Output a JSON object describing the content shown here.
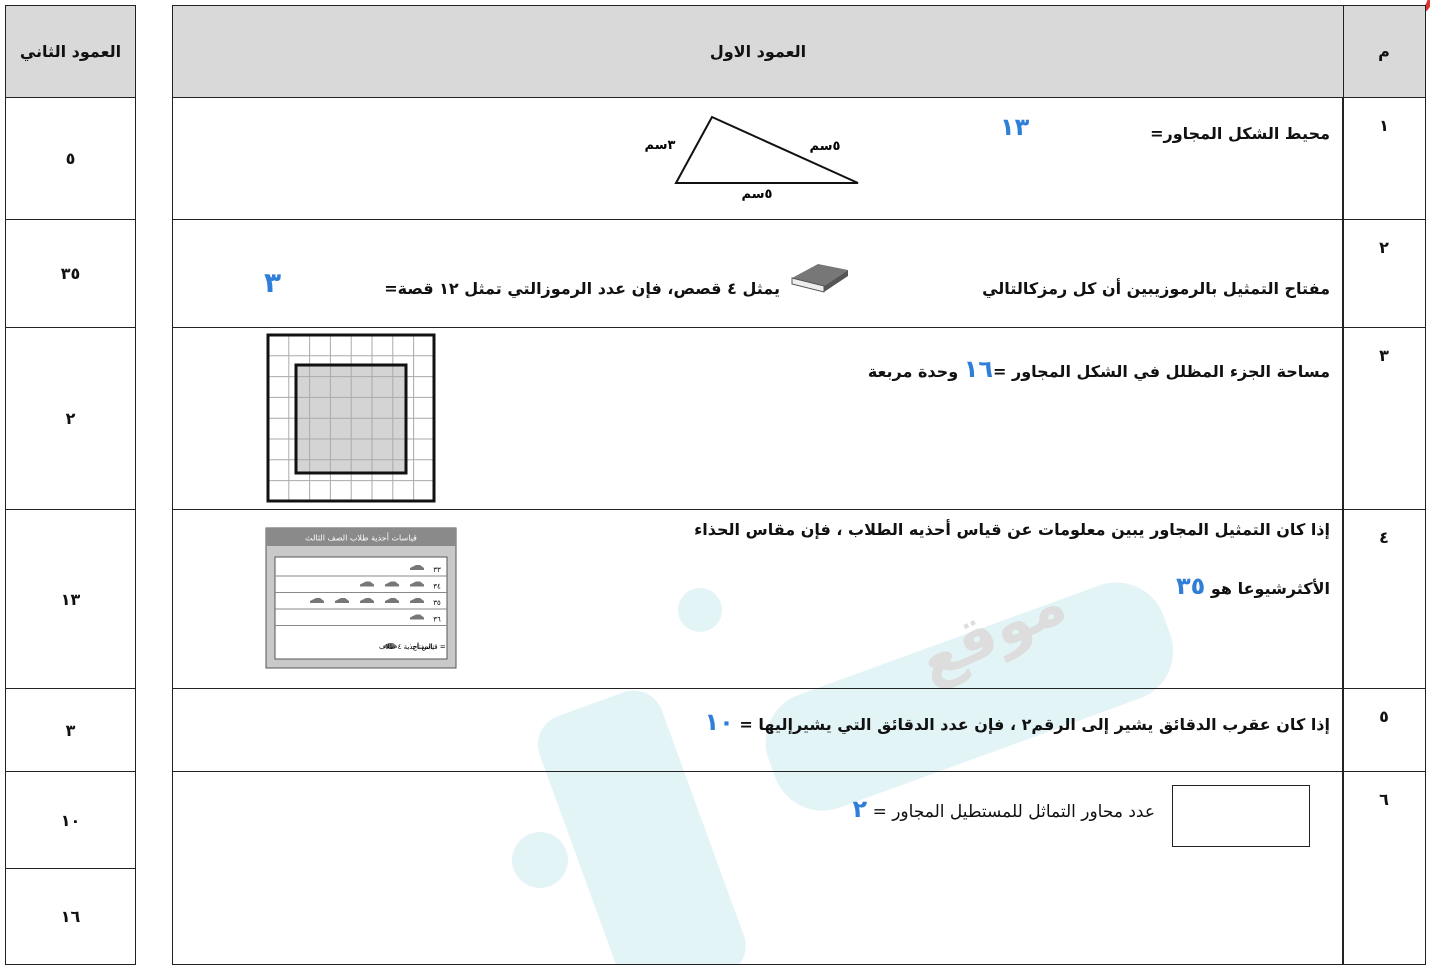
{
  "left_table": {
    "header": "العمود الثاني",
    "rows": [
      "٥",
      "٣٥",
      "٢",
      "١٣",
      "٣",
      "١٠",
      "١٦"
    ]
  },
  "main_table": {
    "headers": [
      "م",
      "العمود الاول"
    ],
    "rows": [
      {
        "number": "١",
        "question": "محيط الشكل المجاور=",
        "answer": "١٣",
        "figure_labels": [
          "٣سم",
          "٥سم",
          "٥سم"
        ]
      },
      {
        "number": "٢",
        "question_start": "مفتاح التمثيل بالرموزيبين أن كل رمزكالتالي",
        "question_end": "يمثل ٤ قصص، فإن عدد الرموزالتي تمثل ١٢ قصة=",
        "answer": "٣"
      },
      {
        "number": "٣",
        "question": "مساحة الجزء المظلل في الشكل المجاور =",
        "answer": "١٦",
        "question_end": "وحدة مربعة"
      },
      {
        "number": "٤",
        "question_line1": "إذا كان التمثيل المجاور  يبين معلومات عن قياس أحذيه الطلاب ، فإن مقاس الحذاء",
        "question_line2": "الأكثرشيوعا هو",
        "answer": "٣٥",
        "pictograph": {
          "title": "قياسات أحذية طلاب الصف الثالث",
          "categories": [
            "٣٣",
            "٣٤",
            "٣٥",
            "٣٦"
          ],
          "counts": [
            1,
            3,
            5,
            1
          ],
          "key_label": "المفتاح:",
          "key_meaning": "= قياس أحذية ٤ طلاب"
        }
      },
      {
        "number": "٥",
        "question": "إذا كان عقرب الدقائق يشير إلى الرقم٢  ، فإن عدد الدقائق التي يشيرإليها  =",
        "answer": "١٠"
      },
      {
        "number": "٦",
        "question": "عدد محاور التماثل للمستطيل المجاور =",
        "answer": "٢"
      }
    ]
  },
  "watermark": "موقع"
}
